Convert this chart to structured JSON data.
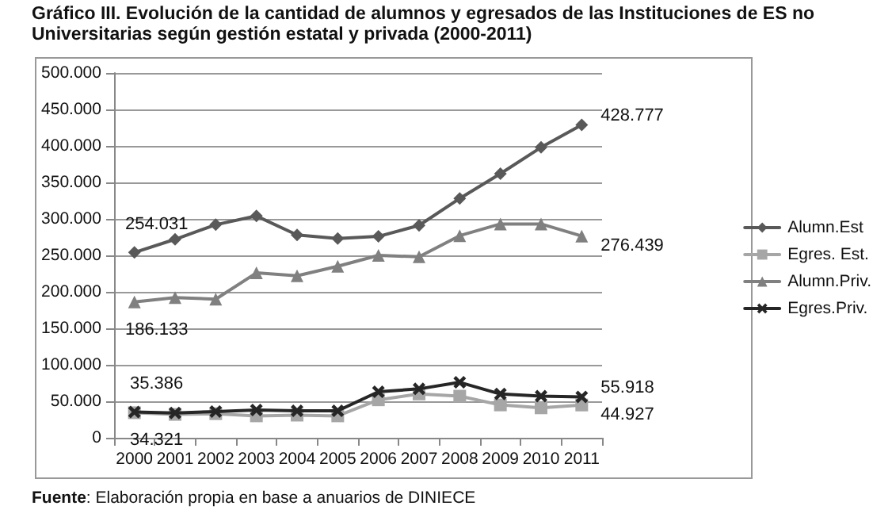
{
  "chart_data": {
    "type": "line",
    "title": "Gráfico III. Evolución de la cantidad de alumnos y egresados de las Instituciones de ES no Universitarias según gestión estatal y privada (2000-2011)",
    "categories": [
      "2000",
      "2001",
      "2002",
      "2003",
      "2004",
      "2005",
      "2006",
      "2007",
      "2008",
      "2009",
      "2010",
      "2011"
    ],
    "series": [
      {
        "name": "Alumn.Est",
        "color": "#595959",
        "marker": "diamond",
        "values": [
          254031,
          272000,
          292000,
          304000,
          278000,
          273000,
          276000,
          291000,
          328000,
          362000,
          398000,
          428777
        ],
        "value_labels": [
          "254.031",
          null,
          null,
          null,
          null,
          null,
          null,
          null,
          null,
          null,
          null,
          "428.777"
        ]
      },
      {
        "name": "Egres. Est.",
        "color": "#a6a6a6",
        "marker": "square",
        "values": [
          34321,
          32000,
          33000,
          30000,
          31000,
          30000,
          52000,
          60000,
          57000,
          45000,
          41000,
          44927
        ],
        "value_labels": [
          "34.321",
          null,
          null,
          null,
          null,
          null,
          null,
          null,
          null,
          null,
          null,
          "44.927"
        ]
      },
      {
        "name": "Alumn.Priv.",
        "color": "#808080",
        "marker": "triangle",
        "values": [
          186133,
          192000,
          190000,
          226000,
          222000,
          235000,
          250000,
          248000,
          277000,
          293000,
          293000,
          276439
        ],
        "value_labels": [
          "186.133",
          null,
          null,
          null,
          null,
          null,
          null,
          null,
          null,
          null,
          null,
          "276.439"
        ]
      },
      {
        "name": "Egres.Priv.",
        "color": "#262626",
        "marker": "cross",
        "values": [
          35386,
          34000,
          36000,
          38000,
          37000,
          37000,
          63000,
          67000,
          76000,
          60000,
          57000,
          55918
        ],
        "value_labels": [
          "35.386",
          null,
          null,
          null,
          null,
          null,
          null,
          null,
          null,
          null,
          null,
          "55.918"
        ]
      }
    ],
    "ylim": [
      0,
      500000
    ],
    "yticks": [
      {
        "value": 0,
        "label": "0"
      },
      {
        "value": 50000,
        "label": "50.000"
      },
      {
        "value": 100000,
        "label": "100.000"
      },
      {
        "value": 150000,
        "label": "150.000"
      },
      {
        "value": 200000,
        "label": "200.000"
      },
      {
        "value": 250000,
        "label": "250.000"
      },
      {
        "value": 300000,
        "label": "300.000"
      },
      {
        "value": 350000,
        "label": "350.000"
      },
      {
        "value": 400000,
        "label": "400.000"
      },
      {
        "value": 450000,
        "label": "450.000"
      },
      {
        "value": 500000,
        "label": "500.000"
      }
    ],
    "grid": "y",
    "legend": "right",
    "line_style": "solid",
    "annotations": [
      "Fuente: Elaboración propia en base a anuarios de DINIECE"
    ]
  }
}
